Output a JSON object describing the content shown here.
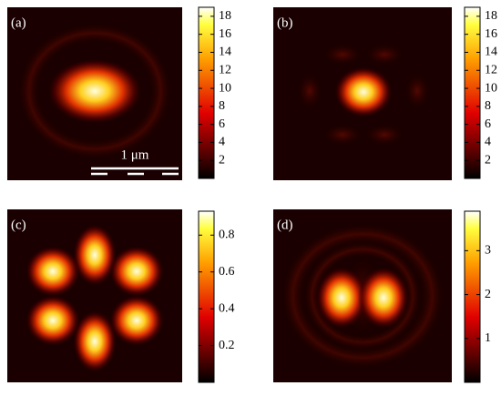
{
  "chart_data": [
    {
      "type": "heatmap",
      "label": "(a)",
      "annotation": "1 μm",
      "clim": [
        0,
        19
      ],
      "cticks": [
        2,
        4,
        6,
        8,
        10,
        12,
        14,
        16,
        18
      ]
    },
    {
      "type": "heatmap",
      "label": "(b)",
      "clim": [
        0,
        19
      ],
      "cticks": [
        2,
        4,
        6,
        8,
        10,
        12,
        14,
        16,
        18
      ]
    },
    {
      "type": "heatmap",
      "label": "(c)",
      "clim": [
        0,
        0.93
      ],
      "cticks": [
        0.2,
        0.4,
        0.6,
        0.8
      ]
    },
    {
      "type": "heatmap",
      "label": "(d)",
      "clim": [
        0,
        3.9
      ],
      "cticks": [
        1,
        2,
        3
      ]
    }
  ]
}
